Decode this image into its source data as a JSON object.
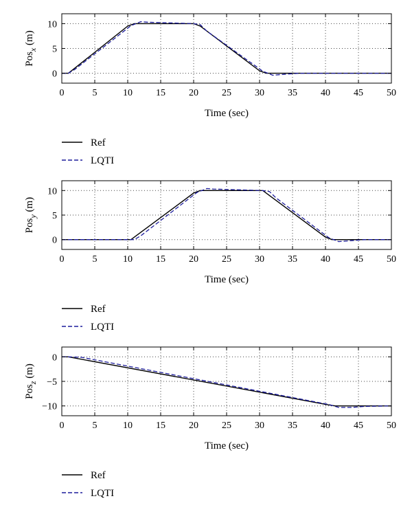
{
  "colors": {
    "ref": "#000000",
    "lqti": "#1c1c9c",
    "grid": "#444444"
  },
  "chart_data": [
    {
      "type": "line",
      "xlabel": "Time (sec)",
      "ylabel_main": "Pos",
      "ylabel_sub": "x",
      "ylabel_unit": "(m)",
      "xlim": [
        0,
        50
      ],
      "ylim": [
        -2,
        12
      ],
      "xticks": [
        0,
        5,
        10,
        15,
        20,
        25,
        30,
        35,
        40,
        45,
        50
      ],
      "yticks": [
        0,
        5,
        10
      ],
      "grid": true,
      "legend_placement": "below",
      "series": [
        {
          "name": "Ref",
          "style": "solid",
          "x": [
            0,
            1,
            10,
            11,
            20,
            21,
            30,
            31,
            50
          ],
          "y": [
            0,
            0,
            9.5,
            10,
            10,
            9.5,
            0.5,
            0,
            0
          ]
        },
        {
          "name": "LQTI",
          "style": "dashed",
          "x": [
            0,
            1,
            2,
            10.5,
            12,
            13,
            20,
            21,
            22,
            30.5,
            32,
            33,
            36,
            50
          ],
          "y": [
            0,
            0,
            0.8,
            9.6,
            10.4,
            10.3,
            10,
            9.8,
            8.5,
            0.4,
            -0.4,
            -0.3,
            0,
            0
          ]
        }
      ]
    },
    {
      "type": "line",
      "xlabel": "Time (sec)",
      "ylabel_main": "Pos",
      "ylabel_sub": "y",
      "ylabel_unit": "(m)",
      "xlim": [
        0,
        50
      ],
      "ylim": [
        -2,
        12
      ],
      "xticks": [
        0,
        5,
        10,
        15,
        20,
        25,
        30,
        35,
        40,
        45,
        50
      ],
      "yticks": [
        0,
        5,
        10
      ],
      "grid": true,
      "legend_placement": "below",
      "series": [
        {
          "name": "Ref",
          "style": "solid",
          "x": [
            0,
            10.5,
            11,
            20,
            21,
            30.5,
            31,
            40,
            41,
            50
          ],
          "y": [
            0,
            0,
            0.5,
            9.5,
            10,
            10,
            9.5,
            0.5,
            0,
            0
          ]
        },
        {
          "name": "LQTI",
          "style": "dashed",
          "x": [
            0,
            11,
            12,
            20.5,
            22,
            23,
            30.5,
            31.5,
            32.5,
            40.5,
            42,
            43,
            46,
            50
          ],
          "y": [
            0,
            0,
            0.8,
            9.6,
            10.4,
            10.3,
            10,
            9.8,
            8.5,
            0.4,
            -0.4,
            -0.3,
            0,
            0
          ]
        }
      ]
    },
    {
      "type": "line",
      "xlabel": "Time (sec)",
      "ylabel_main": "Pos",
      "ylabel_sub": "z",
      "ylabel_unit": "(m)",
      "xlim": [
        0,
        50
      ],
      "ylim": [
        -12,
        2
      ],
      "xticks": [
        0,
        5,
        10,
        15,
        20,
        25,
        30,
        35,
        40,
        45,
        50
      ],
      "yticks": [
        0,
        -5,
        -10
      ],
      "grid": true,
      "legend_placement": "below",
      "series": [
        {
          "name": "Ref",
          "style": "solid",
          "x": [
            0,
            1,
            40.5,
            41.5,
            50
          ],
          "y": [
            0,
            0,
            -9.8,
            -10,
            -10
          ]
        },
        {
          "name": "LQTI",
          "style": "dashed",
          "x": [
            0,
            1,
            3,
            5,
            40.5,
            42,
            44,
            46,
            50
          ],
          "y": [
            0,
            0,
            -0.1,
            -0.6,
            -9.7,
            -10.3,
            -10.3,
            -10.1,
            -10
          ]
        }
      ]
    }
  ]
}
